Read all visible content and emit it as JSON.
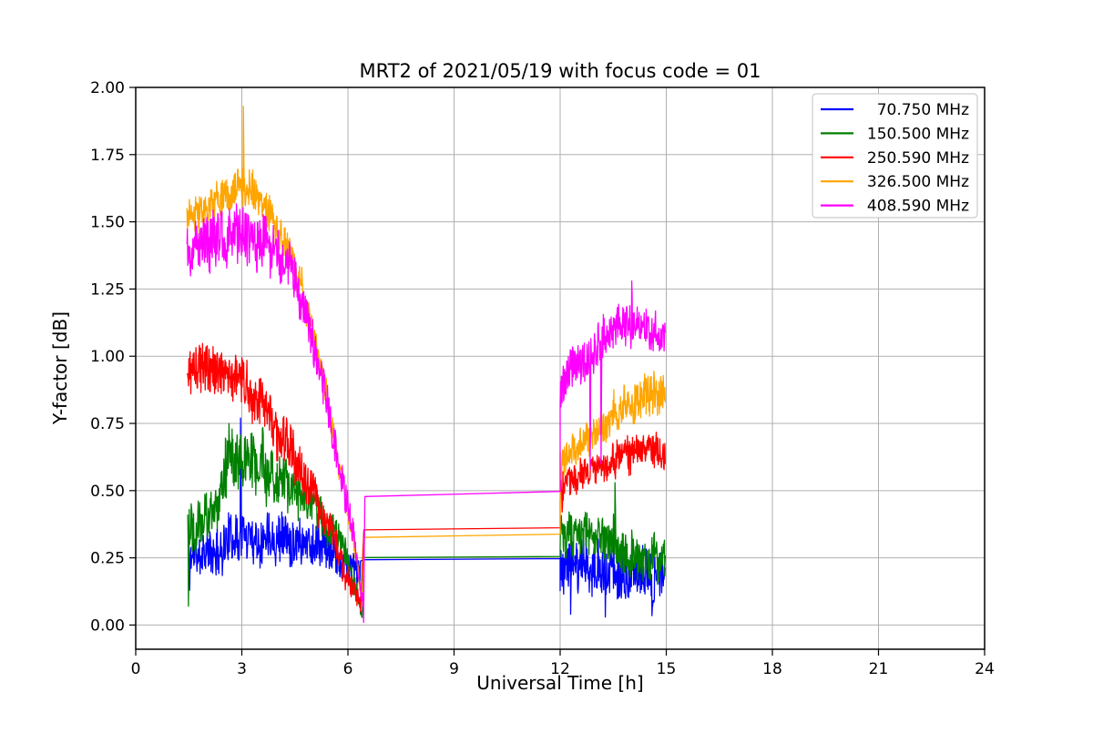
{
  "chart_data": {
    "type": "line",
    "title": "MRT2 of 2021/05/19 with focus code = 01",
    "xlabel": "Universal Time [h]",
    "ylabel": "Y-factor [dB]",
    "xlim": [
      0,
      24
    ],
    "ylim": [
      -0.09,
      2.0
    ],
    "xticks": {
      "values": [
        0,
        3,
        6,
        9,
        12,
        15,
        18,
        21,
        24
      ],
      "labels": [
        "0",
        "3",
        "6",
        "9",
        "12",
        "15",
        "18",
        "21",
        "24"
      ]
    },
    "yticks": {
      "values": [
        0,
        0.25,
        0.5,
        0.75,
        1.0,
        1.25,
        1.5,
        1.75,
        2.0
      ],
      "labels": [
        "0.00",
        "0.25",
        "0.50",
        "0.75",
        "1.00",
        "1.25",
        "1.50",
        "1.75",
        "2.00"
      ]
    },
    "grid": true,
    "grid_color": "#b0b0b0",
    "text_color": "#000000",
    "legend": {
      "position": "upper right"
    },
    "series": [
      {
        "label": "70.750 MHz",
        "color": "#0000FF",
        "seed": 11,
        "segments": [
          {
            "kind": "noisy",
            "x0": 1.48,
            "x1": 6.36,
            "step": 0.011,
            "center": [
              [
                1.48,
                0.26
              ],
              [
                2.3,
                0.27
              ],
              [
                2.6,
                0.32
              ],
              [
                3.2,
                0.335
              ],
              [
                4.2,
                0.33
              ],
              [
                4.8,
                0.315
              ],
              [
                5.4,
                0.28
              ],
              [
                5.9,
                0.24
              ],
              [
                6.36,
                0.19
              ]
            ],
            "amp": [
              [
                1.48,
                0.085
              ],
              [
                2.6,
                0.105
              ],
              [
                4.0,
                0.105
              ],
              [
                5.5,
                0.09
              ],
              [
                6.36,
                0.065
              ]
            ],
            "spikes": [
              [
                1.52,
                0.13
              ],
              [
                2.96,
                0.77
              ]
            ]
          },
          {
            "kind": "line",
            "points": [
              [
                6.45,
                0.243
              ],
              [
                12.0,
                0.247
              ]
            ]
          },
          {
            "kind": "noisy",
            "x0": 12.0,
            "x1": 14.98,
            "step": 0.011,
            "center": [
              [
                12.0,
                0.215
              ],
              [
                13.0,
                0.215
              ],
              [
                13.6,
                0.2
              ],
              [
                14.2,
                0.185
              ],
              [
                14.98,
                0.175
              ]
            ],
            "amp": [
              [
                12.0,
                0.105
              ],
              [
                13.5,
                0.115
              ],
              [
                14.98,
                0.095
              ]
            ],
            "spikes": [
              [
                12.3,
                0.04
              ],
              [
                13.28,
                0.03
              ],
              [
                14.6,
                0.035
              ]
            ]
          }
        ]
      },
      {
        "label": "150.500 MHz",
        "color": "#008000",
        "seed": 22,
        "segments": [
          {
            "kind": "noisy",
            "x0": 1.47,
            "x1": 6.4,
            "step": 0.011,
            "center": [
              [
                1.47,
                0.4
              ],
              [
                2.28,
                0.41
              ],
              [
                2.42,
                0.58
              ],
              [
                2.9,
                0.62
              ],
              [
                3.3,
                0.6
              ],
              [
                4.0,
                0.54
              ],
              [
                4.6,
                0.49
              ],
              [
                5.1,
                0.43
              ],
              [
                5.6,
                0.35
              ],
              [
                6.0,
                0.22
              ],
              [
                6.25,
                0.12
              ],
              [
                6.4,
                0.06
              ]
            ],
            "amp": [
              [
                1.47,
                0.115
              ],
              [
                2.28,
                0.115
              ],
              [
                2.5,
                0.135
              ],
              [
                3.3,
                0.135
              ],
              [
                4.5,
                0.1
              ],
              [
                5.5,
                0.085
              ],
              [
                6.1,
                0.06
              ],
              [
                6.4,
                0.035
              ]
            ],
            "spikes": [
              [
                1.49,
                0.07
              ]
            ]
          },
          {
            "kind": "line",
            "points": [
              [
                6.45,
                0.251
              ],
              [
                12.0,
                0.255
              ]
            ]
          },
          {
            "kind": "noisy",
            "x0": 12.0,
            "x1": 14.97,
            "step": 0.011,
            "center": [
              [
                12.0,
                0.33
              ],
              [
                12.8,
                0.34
              ],
              [
                13.4,
                0.32
              ],
              [
                13.8,
                0.27
              ],
              [
                14.3,
                0.25
              ],
              [
                14.97,
                0.235
              ]
            ],
            "amp": [
              [
                12.0,
                0.085
              ],
              [
                13.0,
                0.09
              ],
              [
                13.8,
                0.1
              ],
              [
                14.97,
                0.1
              ]
            ],
            "spikes": [
              [
                13.55,
                0.53
              ]
            ]
          }
        ]
      },
      {
        "label": "250.590 MHz",
        "color": "#FF0000",
        "seed": 33,
        "segments": [
          {
            "kind": "noisy",
            "x0": 1.46,
            "x1": 6.36,
            "step": 0.011,
            "center": [
              [
                1.46,
                0.92
              ],
              [
                2.0,
                0.945
              ],
              [
                2.4,
                0.955
              ],
              [
                2.8,
                0.92
              ],
              [
                3.2,
                0.87
              ],
              [
                3.6,
                0.8
              ],
              [
                4.0,
                0.71
              ],
              [
                4.5,
                0.62
              ],
              [
                5.0,
                0.5
              ],
              [
                5.5,
                0.36
              ],
              [
                5.9,
                0.21
              ],
              [
                6.15,
                0.13
              ],
              [
                6.36,
                0.08
              ]
            ],
            "amp": [
              [
                1.46,
                0.1
              ],
              [
                2.4,
                0.115
              ],
              [
                3.5,
                0.105
              ],
              [
                4.5,
                0.1
              ],
              [
                5.5,
                0.075
              ],
              [
                6.0,
                0.055
              ],
              [
                6.36,
                0.04
              ]
            ],
            "spikes": []
          },
          {
            "kind": "line",
            "points": [
              [
                6.45,
                0.354
              ],
              [
                12.0,
                0.362
              ]
            ]
          },
          {
            "kind": "noisy",
            "x0": 12.0,
            "x1": 14.97,
            "step": 0.011,
            "center": [
              [
                12.0,
                0.5
              ],
              [
                12.6,
                0.555
              ],
              [
                13.2,
                0.6
              ],
              [
                13.8,
                0.635
              ],
              [
                14.4,
                0.655
              ],
              [
                14.97,
                0.65
              ]
            ],
            "amp": [
              [
                12.0,
                0.065
              ],
              [
                13.0,
                0.07
              ],
              [
                14.0,
                0.08
              ],
              [
                14.97,
                0.08
              ]
            ],
            "spikes": [
              [
                12.05,
                0.42
              ]
            ]
          }
        ]
      },
      {
        "label": "326.500 MHz",
        "color": "#FFA500",
        "seed": 44,
        "segments": [
          {
            "kind": "noisy",
            "x0": 1.45,
            "x1": 6.43,
            "step": 0.011,
            "center": [
              [
                1.45,
                1.52
              ],
              [
                2.0,
                1.555
              ],
              [
                2.5,
                1.595
              ],
              [
                3.0,
                1.615
              ],
              [
                3.35,
                1.595
              ],
              [
                3.8,
                1.53
              ],
              [
                4.2,
                1.44
              ],
              [
                4.6,
                1.3
              ],
              [
                5.0,
                1.1
              ],
              [
                5.4,
                0.85
              ],
              [
                5.8,
                0.57
              ],
              [
                6.1,
                0.35
              ],
              [
                6.3,
                0.19
              ],
              [
                6.43,
                0.07
              ]
            ],
            "amp": [
              [
                1.45,
                0.075
              ],
              [
                2.5,
                0.085
              ],
              [
                3.5,
                0.08
              ],
              [
                4.5,
                0.075
              ],
              [
                5.5,
                0.065
              ],
              [
                6.0,
                0.055
              ],
              [
                6.43,
                0.035
              ]
            ],
            "spikes": [
              [
                3.05,
                1.93
              ]
            ]
          },
          {
            "kind": "line",
            "points": [
              [
                6.46,
                0.326
              ],
              [
                12.0,
                0.338
              ]
            ]
          },
          {
            "kind": "noisy",
            "x0": 12.0,
            "x1": 14.97,
            "step": 0.011,
            "center": [
              [
                12.0,
                0.6
              ],
              [
                12.6,
                0.67
              ],
              [
                13.2,
                0.735
              ],
              [
                13.8,
                0.8
              ],
              [
                14.3,
                0.85
              ],
              [
                14.6,
                0.865
              ],
              [
                14.97,
                0.855
              ]
            ],
            "amp": [
              [
                12.0,
                0.07
              ],
              [
                13.0,
                0.075
              ],
              [
                14.0,
                0.09
              ],
              [
                14.97,
                0.09
              ]
            ],
            "spikes": []
          }
        ]
      },
      {
        "label": "408.590 MHz",
        "color": "#FF00FF",
        "seed": 55,
        "segments": [
          {
            "kind": "noisy",
            "x0": 1.45,
            "x1": 6.45,
            "step": 0.011,
            "center": [
              [
                1.45,
                1.41
              ],
              [
                2.0,
                1.43
              ],
              [
                2.5,
                1.44
              ],
              [
                3.0,
                1.46
              ],
              [
                3.5,
                1.435
              ],
              [
                4.0,
                1.39
              ],
              [
                4.4,
                1.32
              ],
              [
                4.8,
                1.17
              ],
              [
                5.1,
                1.01
              ],
              [
                5.4,
                0.84
              ],
              [
                5.7,
                0.63
              ],
              [
                6.0,
                0.43
              ],
              [
                6.15,
                0.34
              ],
              [
                6.3,
                0.19
              ],
              [
                6.45,
                0.06
              ]
            ],
            "amp": [
              [
                1.45,
                0.115
              ],
              [
                2.5,
                0.12
              ],
              [
                3.5,
                0.115
              ],
              [
                4.5,
                0.1
              ],
              [
                5.5,
                0.085
              ],
              [
                6.1,
                0.065
              ],
              [
                6.45,
                0.04
              ]
            ],
            "spikes": [
              [
                6.44,
                0.01
              ]
            ]
          },
          {
            "kind": "line",
            "points": [
              [
                6.48,
                0.478
              ],
              [
                12.0,
                0.497
              ]
            ]
          },
          {
            "kind": "noisy",
            "x0": 12.0,
            "x1": 14.98,
            "step": 0.011,
            "center": [
              [
                12.0,
                0.88
              ],
              [
                12.5,
                0.965
              ],
              [
                13.0,
                1.02
              ],
              [
                13.5,
                1.1
              ],
              [
                13.9,
                1.14
              ],
              [
                14.2,
                1.13
              ],
              [
                14.6,
                1.1
              ],
              [
                14.98,
                1.1
              ]
            ],
            "amp": [
              [
                12.0,
                0.095
              ],
              [
                13.0,
                0.1
              ],
              [
                14.0,
                0.09
              ],
              [
                14.98,
                0.085
              ]
            ],
            "spikes": [
              [
                12.85,
                0.58
              ],
              [
                13.15,
                0.6
              ],
              [
                14.02,
                1.28
              ]
            ]
          }
        ]
      }
    ]
  }
}
